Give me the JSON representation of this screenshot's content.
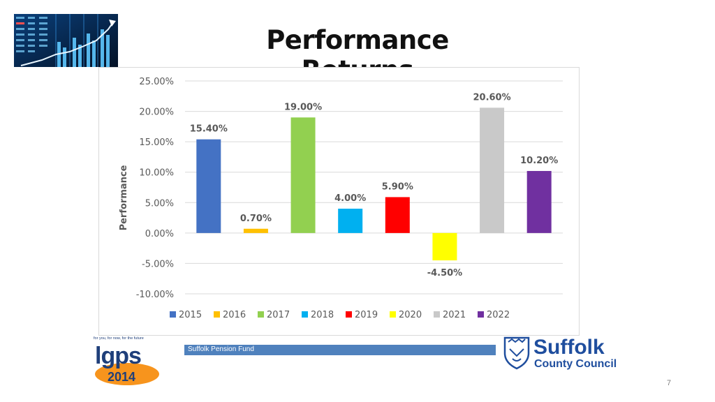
{
  "title": "Performance Returns",
  "footer": {
    "fund_name": "Suffolk Pension Fund",
    "page_number": "7"
  },
  "logos": {
    "lgps": {
      "tagline": "for you, for now, for the future",
      "name": "lgps",
      "year": "2014"
    },
    "council": {
      "line1": "Suffolk",
      "line2": "County Council"
    }
  },
  "chart_data": {
    "type": "bar",
    "title": "",
    "xlabel": "",
    "ylabel": "Performance",
    "ylim": [
      -10,
      25
    ],
    "yticks": [
      25,
      20,
      15,
      10,
      5,
      0,
      -5,
      -10
    ],
    "ytick_labels": [
      "25.00%",
      "20.00%",
      "15.00%",
      "10.00%",
      "5.00%",
      "0.00%",
      "-5.00%",
      "-10.00%"
    ],
    "grid": true,
    "legend_position": "bottom",
    "categories": [
      "2015",
      "2016",
      "2017",
      "2018",
      "2019",
      "2020",
      "2021",
      "2022"
    ],
    "values": [
      15.4,
      0.7,
      19.0,
      4.0,
      5.9,
      -4.5,
      20.6,
      10.2
    ],
    "value_labels": [
      "15.40%",
      "0.70%",
      "19.00%",
      "4.00%",
      "5.90%",
      "-4.50%",
      "20.60%",
      "10.20%"
    ],
    "colors": [
      "#4472c4",
      "#ffc000",
      "#92d050",
      "#00b0f0",
      "#ff0000",
      "#ffff00",
      "#c9c9c9",
      "#7030a0"
    ]
  }
}
